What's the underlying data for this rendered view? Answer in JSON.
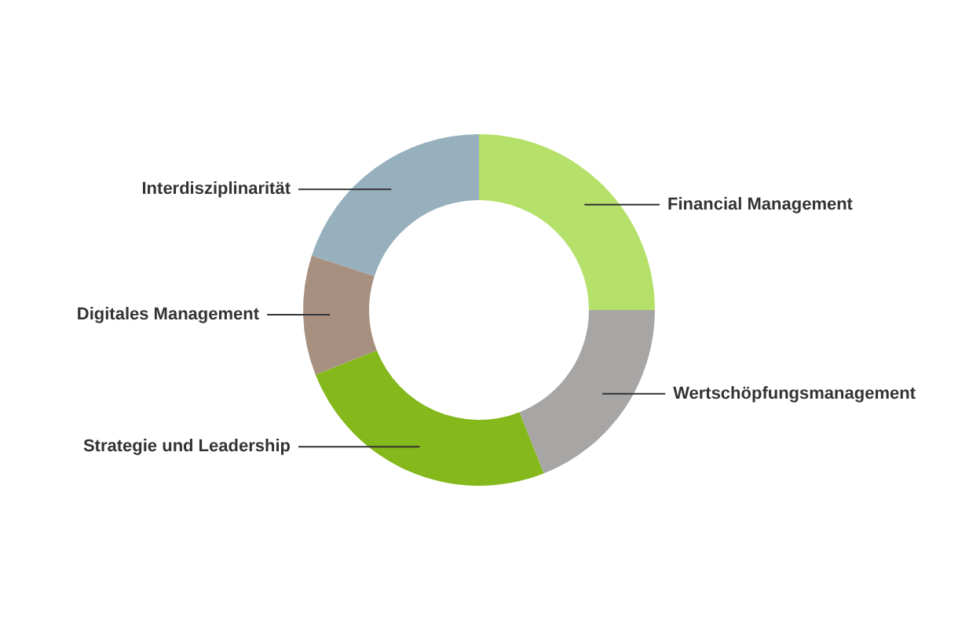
{
  "chart_data": {
    "type": "donut",
    "categories": [
      "Financial Management",
      "Wertschöpfungsmanagement",
      "Strategie und Leadership",
      "Digitales Management",
      "Interdisziplinarität"
    ],
    "values": [
      25,
      19,
      25,
      11,
      20
    ],
    "colors": [
      "#b5e06a",
      "#a8a5a5",
      "#84b81b",
      "#a89080",
      "#96b0bd"
    ]
  }
}
